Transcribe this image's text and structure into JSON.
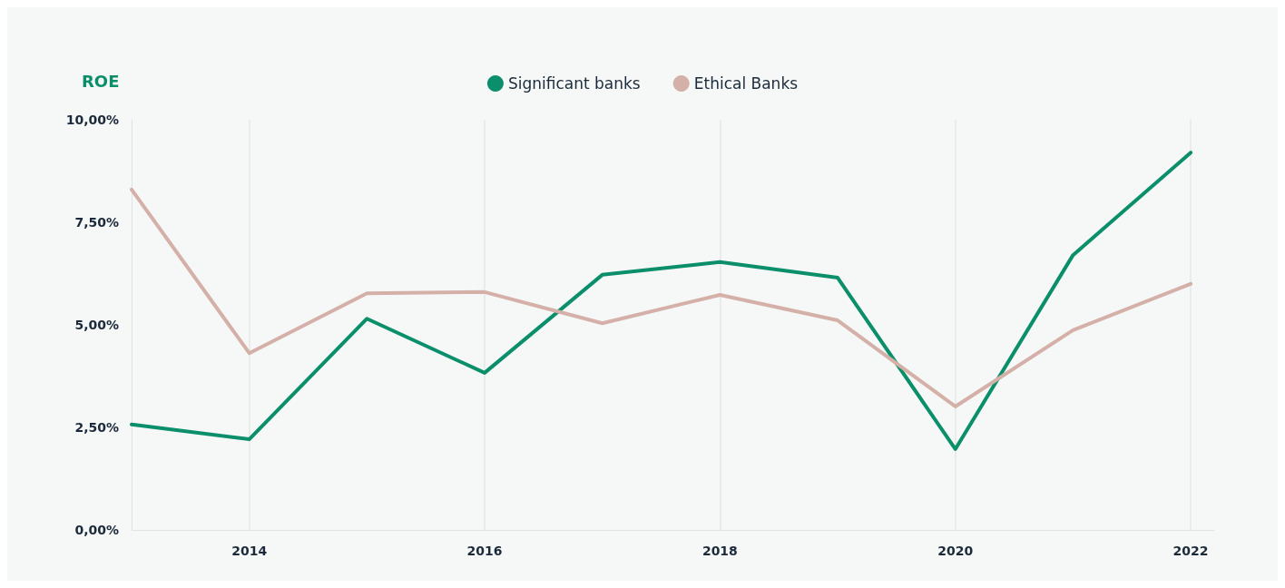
{
  "chart_data": {
    "type": "line",
    "ylabel": "ROE",
    "x": [
      2013,
      2014,
      2015,
      2016,
      2017,
      2018,
      2019,
      2020,
      2021,
      2022
    ],
    "series": [
      {
        "name": "Significant banks",
        "color": "#0a8f6a",
        "values": [
          2.57,
          2.21,
          5.15,
          3.83,
          6.22,
          6.53,
          6.15,
          1.97,
          6.7,
          9.2
        ]
      },
      {
        "name": "Ethical Banks",
        "color": "#d4b0a8",
        "values": [
          8.3,
          4.31,
          5.77,
          5.8,
          5.04,
          5.73,
          5.11,
          3.01,
          4.87,
          6.0
        ]
      }
    ],
    "xlim": [
      2013,
      2022.2
    ],
    "xticks": [
      2014,
      2016,
      2018,
      2020,
      2022
    ],
    "ylim": [
      0,
      10
    ],
    "yticks": [
      {
        "value": 0,
        "label": "0,00%"
      },
      {
        "value": 2.5,
        "label": "2,50%"
      },
      {
        "value": 5,
        "label": "5,00%"
      },
      {
        "value": 7.5,
        "label": "7,50%"
      },
      {
        "value": 10,
        "label": "10,00%"
      }
    ],
    "grid": "x",
    "legend": "top",
    "marker": "none",
    "line_style": "solid"
  }
}
